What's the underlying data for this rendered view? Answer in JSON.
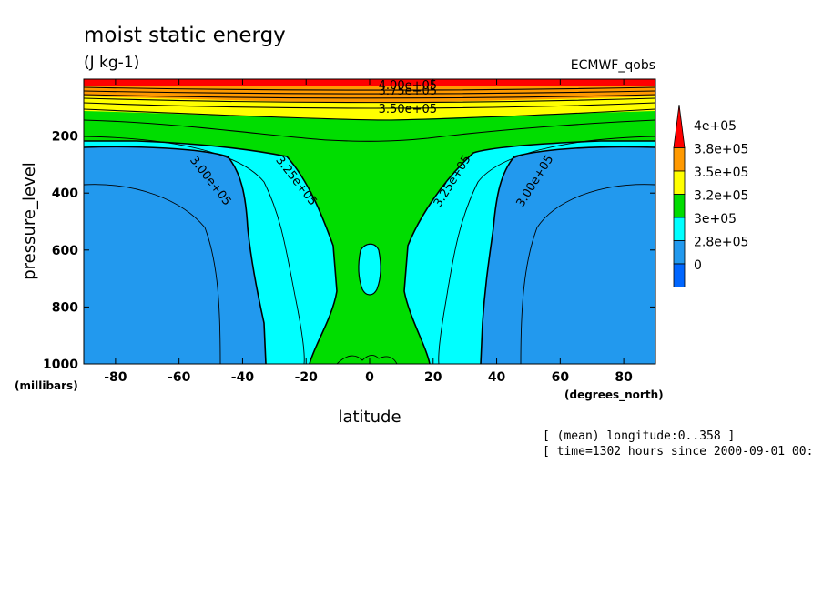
{
  "chart_data": {
    "type": "contour",
    "title": "moist static energy",
    "units": "(J kg-1)",
    "source": "ECMWF_qobs",
    "xlabel": "latitude",
    "xunits": "(degrees_north)",
    "ylabel": "pressure_level",
    "yunits": "(millibars)",
    "xlim": [
      -90,
      90
    ],
    "ylim": [
      1000,
      0
    ],
    "xticks": [
      -80,
      -60,
      -40,
      -20,
      0,
      20,
      40,
      60,
      80
    ],
    "yticks": [
      200,
      400,
      600,
      800,
      1000
    ],
    "legend": {
      "position": "right",
      "levels": [
        {
          "label": "4e+05",
          "color": "#ff0000"
        },
        {
          "label": "3.8e+05",
          "color": "#ff9900"
        },
        {
          "label": "3.5e+05",
          "color": "#ffff00"
        },
        {
          "label": "3.2e+05",
          "color": "#00dd00"
        },
        {
          "label": "3e+05",
          "color": "#00ffff"
        },
        {
          "label": "2.8e+05",
          "color": "#2299ee"
        },
        {
          "label": "0",
          "color": "#0066ff"
        }
      ]
    },
    "contour_labels": [
      {
        "text": "4.00e+05",
        "lat": 12,
        "p": 35
      },
      {
        "text": "3.75e+05",
        "lat": 12,
        "p": 55
      },
      {
        "text": "3.50e+05",
        "lat": 12,
        "p": 118
      },
      {
        "text": "3.25e+05",
        "lat": -24,
        "p": 365
      },
      {
        "text": "3.25e+05",
        "lat": 27,
        "p": 365
      },
      {
        "text": "3.00e+05",
        "lat": -51,
        "p": 365
      },
      {
        "text": "3.00e+05",
        "lat": 53,
        "p": 365
      }
    ],
    "regions": [
      {
        "band": "0",
        "color": "#0066ff",
        "desc": "absent"
      },
      {
        "band": "2.8e+05",
        "color": "#2299ee",
        "desc": "polar and mid-latitude lower-mid troposphere"
      },
      {
        "band": "3e+05",
        "color": "#00ffff",
        "desc": "subtropical flanks"
      },
      {
        "band": "3.2e+05",
        "color": "#00dd00",
        "desc": "tropical column"
      },
      {
        "band": "3.5e+05",
        "color": "#ffff00",
        "desc": "upper troposphere"
      },
      {
        "band": "3.8e+05",
        "color": "#ff9900",
        "desc": "tropopause layer"
      },
      {
        "band": "4e+05",
        "color": "#ff0000",
        "desc": "stratosphere"
      }
    ]
  },
  "info_lines": [
    "[ (mean) longitude:0..358 ]",
    "[ time=1302 hours since 2000-09-01 00:"
  ]
}
